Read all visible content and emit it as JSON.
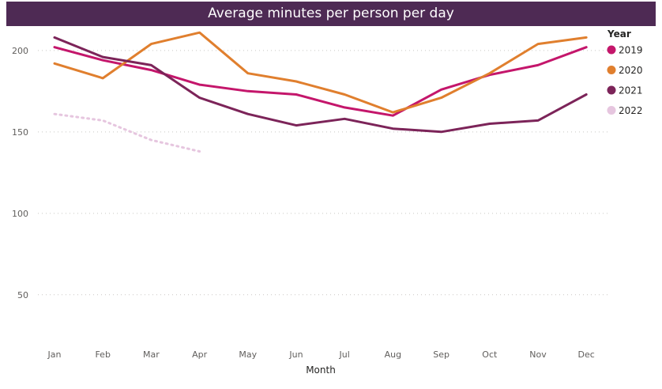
{
  "chart_data": {
    "type": "line",
    "title": "Average minutes per person per day",
    "xlabel": "Month",
    "ylabel": "",
    "categories": [
      "Jan",
      "Feb",
      "Mar",
      "Apr",
      "May",
      "Jun",
      "Jul",
      "Aug",
      "Sep",
      "Oct",
      "Nov",
      "Dec"
    ],
    "ylim": [
      30,
      214
    ],
    "yticks": [
      50,
      100,
      150,
      200
    ],
    "grid": "horizontal dotted",
    "legend": {
      "title": "Year",
      "position": "top-right"
    },
    "series": [
      {
        "name": "2019",
        "color": "#c4166b",
        "style": "solid",
        "values": [
          202,
          194,
          188,
          179,
          175,
          173,
          165,
          160,
          176,
          185,
          191,
          202
        ]
      },
      {
        "name": "2020",
        "color": "#e07f2e",
        "style": "solid",
        "values": [
          192,
          183,
          204,
          211,
          186,
          181,
          173,
          162,
          171,
          186,
          204,
          208
        ]
      },
      {
        "name": "2021",
        "color": "#7c2459",
        "style": "solid",
        "values": [
          208,
          196,
          191,
          171,
          161,
          154,
          158,
          152,
          150,
          155,
          157,
          173
        ]
      },
      {
        "name": "2022",
        "color": "#e6c6df",
        "style": "dotted",
        "values": [
          161,
          157,
          145,
          138,
          null,
          null,
          null,
          null,
          null,
          null,
          null,
          null
        ]
      }
    ]
  }
}
